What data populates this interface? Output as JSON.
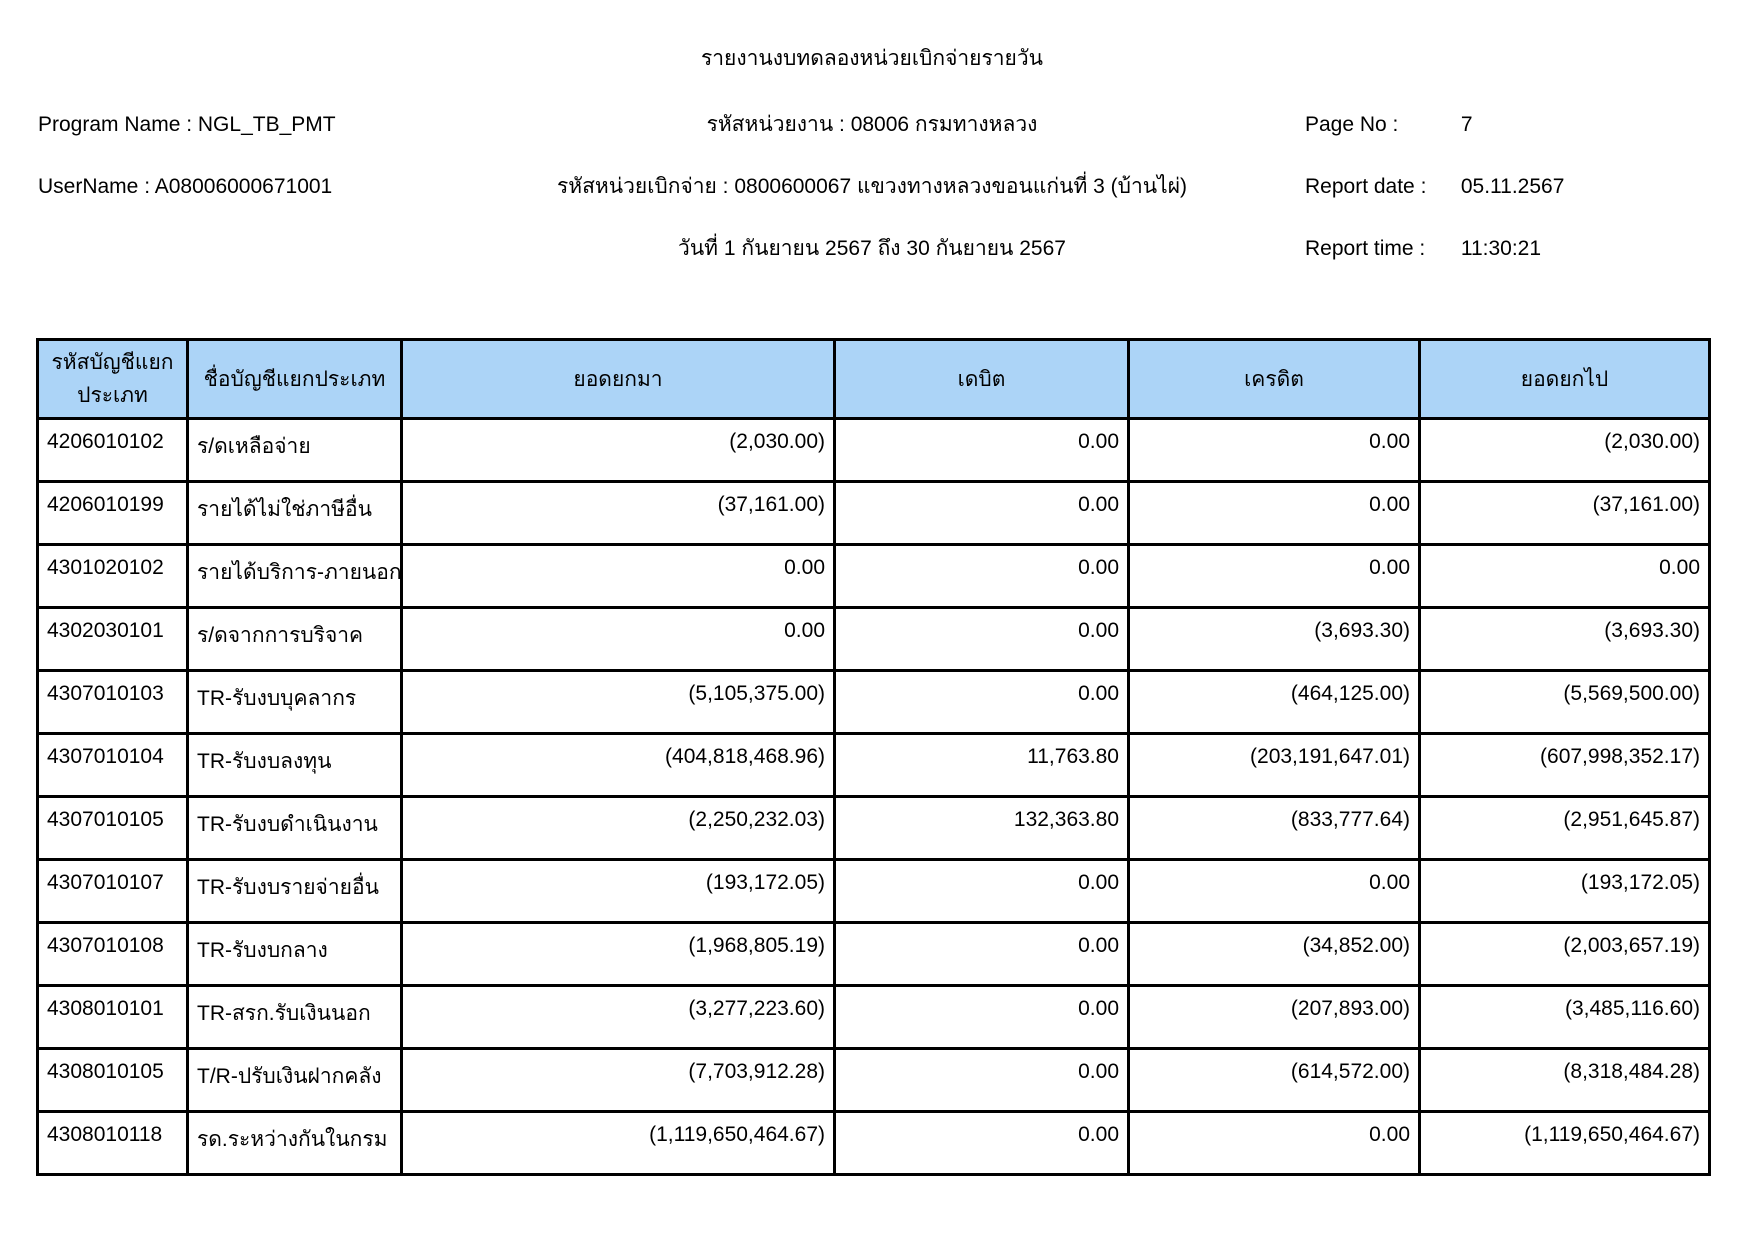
{
  "header": {
    "title": "รายงานงบทดลองหน่วยเบิกจ่ายรายวัน",
    "program_name": {
      "label": "Program Name :",
      "value": "NGL_TB_PMT"
    },
    "user_name": {
      "label": "UserName :",
      "value": "A08006000671001"
    },
    "center_lines": {
      "agency": "รหัสหน่วยงาน : 08006 กรมทางหลวง",
      "disbursement_unit": "รหัสหน่วยเบิกจ่าย : 0800600067 แขวงทางหลวงขอนแก่นที่ 3 (บ้านไผ่)",
      "date_range": "วันที่ 1 กันยายน 2567 ถึง 30 กันยายน 2567"
    },
    "page_no": {
      "label": "Page No :",
      "value": "7"
    },
    "report_date": {
      "label": "Report date :",
      "value": "05.11.2567"
    },
    "report_time": {
      "label": "Report time :",
      "value": "11:30:21"
    }
  },
  "table": {
    "columns": [
      "รหัสบัญชีแยกประเภท",
      "ชื่อบัญชีแยกประเภท",
      "ยอดยกมา",
      "เดบิต",
      "เครดิต",
      "ยอดยกไป"
    ],
    "column_keys": [
      "account-code",
      "account-name",
      "opening-balance",
      "debit",
      "credit",
      "closing-balance"
    ],
    "rows": [
      [
        "4206010102",
        "ร/ดเหลือจ่าย",
        "(2,030.00)",
        "0.00",
        "0.00",
        "(2,030.00)"
      ],
      [
        "4206010199",
        "รายได้ไม่ใช่ภาษีอื่น",
        "(37,161.00)",
        "0.00",
        "0.00",
        "(37,161.00)"
      ],
      [
        "4301020102",
        "รายได้บริการ-ภายนอก",
        "0.00",
        "0.00",
        "0.00",
        "0.00"
      ],
      [
        "4302030101",
        "ร/ดจากการบริจาค",
        "0.00",
        "0.00",
        "(3,693.30)",
        "(3,693.30)"
      ],
      [
        "4307010103",
        "TR-รับงบบุคลากร",
        "(5,105,375.00)",
        "0.00",
        "(464,125.00)",
        "(5,569,500.00)"
      ],
      [
        "4307010104",
        "TR-รับงบลงทุน",
        "(404,818,468.96)",
        "11,763.80",
        "(203,191,647.01)",
        "(607,998,352.17)"
      ],
      [
        "4307010105",
        "TR-รับงบดำเนินงาน",
        "(2,250,232.03)",
        "132,363.80",
        "(833,777.64)",
        "(2,951,645.87)"
      ],
      [
        "4307010107",
        "TR-รับงบรายจ่ายอื่น",
        "(193,172.05)",
        "0.00",
        "0.00",
        "(193,172.05)"
      ],
      [
        "4307010108",
        "TR-รับงบกลาง",
        "(1,968,805.19)",
        "0.00",
        "(34,852.00)",
        "(2,003,657.19)"
      ],
      [
        "4308010101",
        "TR-สรก.รับเงินนอก",
        "(3,277,223.60)",
        "0.00",
        "(207,893.00)",
        "(3,485,116.60)"
      ],
      [
        "4308010105",
        "T/R-ปรับเงินฝากคลัง",
        "(7,703,912.28)",
        "0.00",
        "(614,572.00)",
        "(8,318,484.28)"
      ],
      [
        "4308010118",
        "รด.ระหว่างกันในกรม",
        "(1,119,650,464.67)",
        "0.00",
        "0.00",
        "(1,119,650,464.67)"
      ]
    ]
  },
  "colors": {
    "header_bg": "#ACD4F7",
    "border": "#000000",
    "text": "#000000",
    "page_bg": "#FFFFFF"
  }
}
